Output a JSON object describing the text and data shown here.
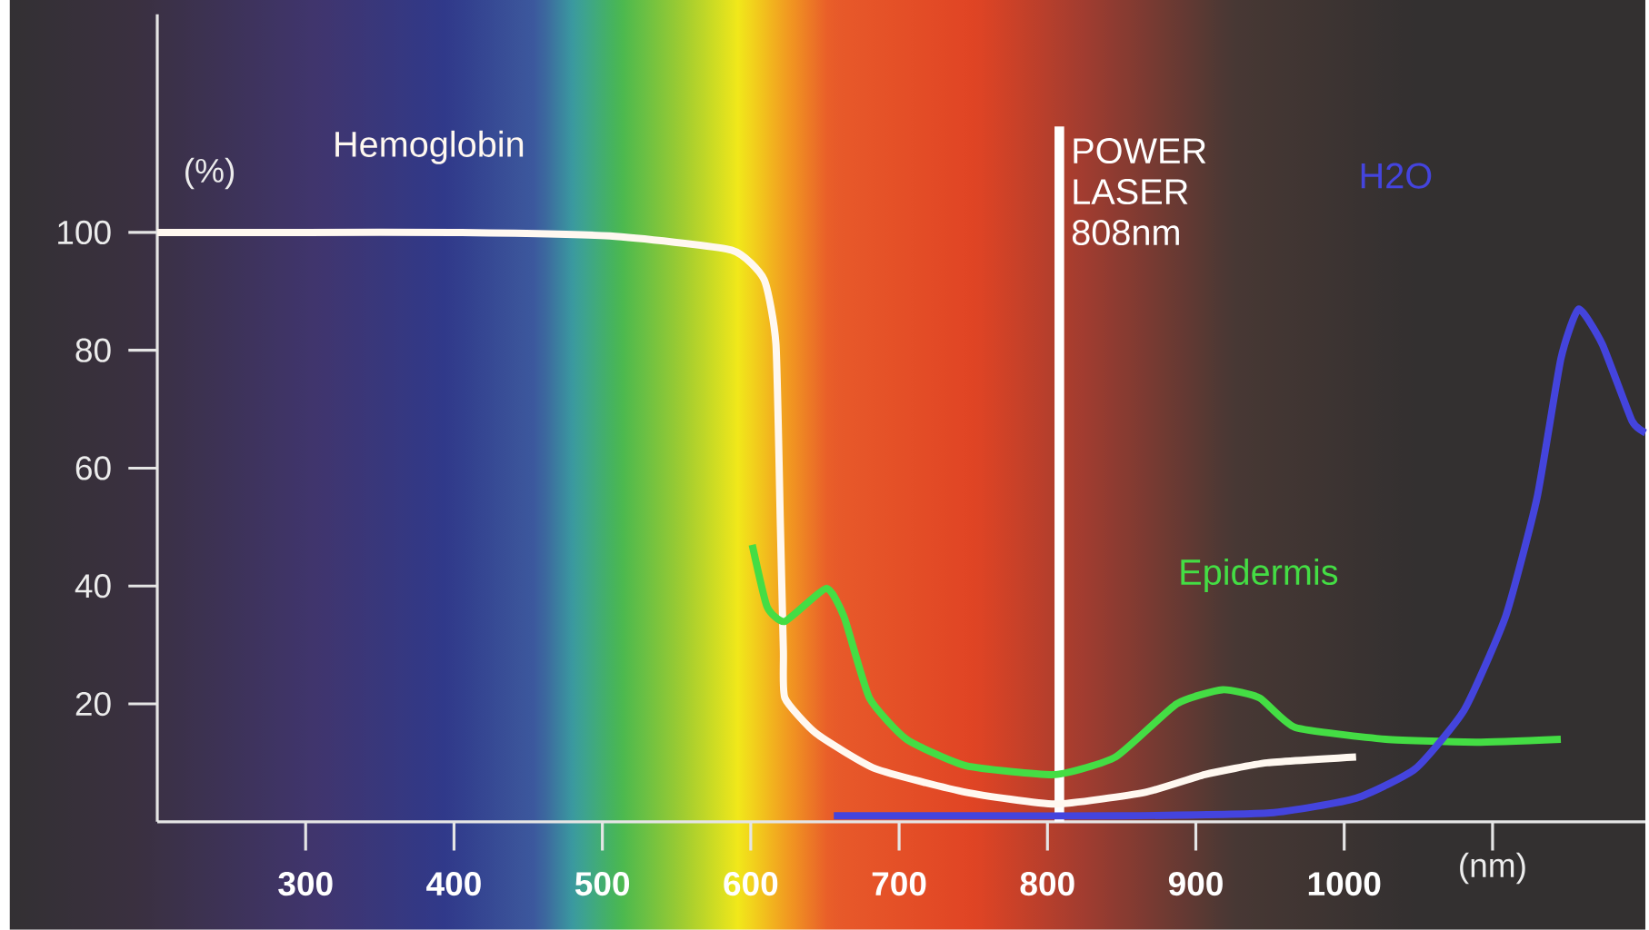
{
  "chart_data": {
    "type": "line",
    "xlabel": "(nm)",
    "ylabel": "(%)",
    "xlim": [
      200,
      1203
    ],
    "ylim": [
      0,
      137
    ],
    "xticks": [
      300,
      400,
      500,
      600,
      700,
      800,
      900,
      1000,
      {
        "value": 1100,
        "label": null
      }
    ],
    "yticks": [
      20,
      40,
      60,
      80,
      100
    ],
    "grid": false,
    "marker": "none",
    "line_style": "solid",
    "series": [
      {
        "name": "Hemoglobin",
        "color": "#fff8f0",
        "x": [
          200,
          300,
          400,
          505,
          587,
          609,
          617,
          620,
          622,
          623,
          644,
          684,
          745,
          805,
          866,
          906,
          948,
          1008
        ],
        "values": [
          100,
          100,
          100,
          99.4,
          97,
          92,
          81,
          50,
          29,
          21,
          15,
          9,
          5,
          3,
          5,
          8,
          10,
          11
        ]
      },
      {
        "name": "Epidermis",
        "color": "#44dd44",
        "x": [
          601,
          611,
          623,
          651,
          663,
          680,
          705,
          745,
          805,
          846,
          887,
          918,
          943,
          967,
          1028,
          1089,
          1146
        ],
        "values": [
          47,
          36.5,
          34,
          39.6,
          34.7,
          21,
          14,
          9.5,
          8,
          11,
          20,
          22.4,
          21,
          16,
          14,
          13.5,
          14
        ]
      },
      {
        "name": "H2O",
        "color": "#4444dd",
        "x": [
          656,
          750,
          850,
          950,
          1008,
          1048,
          1081,
          1109,
          1130,
          1146,
          1158,
          1174,
          1194,
          1203
        ],
        "values": [
          1,
          1,
          1,
          1.5,
          4,
          9,
          19,
          35,
          55,
          78.5,
          87,
          81,
          68,
          66
        ]
      }
    ],
    "ref_lines": [
      {
        "axis": "x",
        "value": 808,
        "label": "POWER LASER 808nm",
        "color": "#ffffff"
      }
    ]
  }
}
